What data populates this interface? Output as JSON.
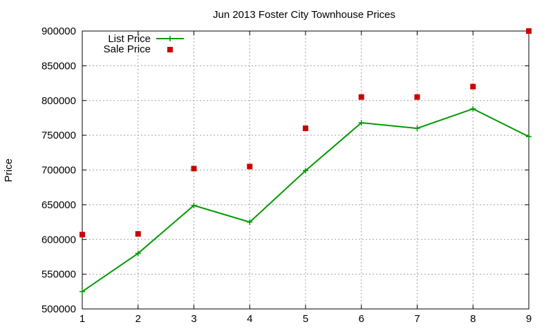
{
  "chart_data": {
    "type": "line",
    "title": "Jun 2013 Foster City Townhouse Prices",
    "xlabel": "",
    "ylabel": "Price",
    "xlim": [
      1,
      9
    ],
    "ylim": [
      500000,
      900000
    ],
    "x_ticks": [
      "1",
      "2",
      "3",
      "4",
      "5",
      "6",
      "7",
      "8",
      "9"
    ],
    "y_ticks": [
      "500000",
      "550000",
      "600000",
      "650000",
      "700000",
      "750000",
      "800000",
      "850000",
      "900000"
    ],
    "grid": true,
    "legend_position": "top-left",
    "x": [
      1,
      2,
      3,
      4,
      5,
      6,
      7,
      8,
      9
    ],
    "series": [
      {
        "name": "List Price",
        "style": "line-with-plus-markers",
        "color": "#009900",
        "values": [
          525000,
          580000,
          649000,
          625000,
          699000,
          768000,
          760000,
          788000,
          748000
        ]
      },
      {
        "name": "Sale Price",
        "style": "square-points",
        "color": "#cc0000",
        "values": [
          607000,
          608000,
          702000,
          705000,
          760000,
          805000,
          805000,
          820000,
          900000
        ]
      }
    ]
  }
}
